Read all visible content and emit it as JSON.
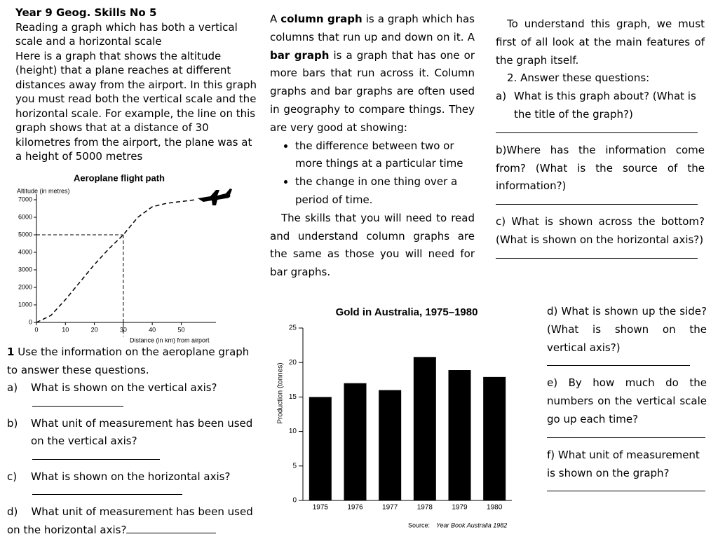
{
  "header": {
    "title": "Year 9 Geog. Skills No 5",
    "subtitle": "Reading a graph which has both a vertical scale and a horizontal scale",
    "intro": "Here is a graph that shows the altitude (height) that a plane reaches at different distances away from the airport. In this graph you must read both the vertical scale and the horizontal scale. For example, the line on this graph shows that at a distance of 30 kilometres from the airport, the plane was at a height of 5000 metres"
  },
  "questions_1": {
    "number": "1",
    "lead": "Use the information on the aeroplane graph to answer these questions.",
    "items": [
      {
        "label": "a)",
        "text": "What is shown on the vertical axis?"
      },
      {
        "label": "b)",
        "text": "What unit of measurement has been used on the vertical axis?"
      },
      {
        "label": "c)",
        "text": "What is shown on the horizontal axis?"
      },
      {
        "label": "d)",
        "text": "What unit of measurement has been used on the horizontal axis?"
      }
    ]
  },
  "column_text": {
    "parts": [
      "A ",
      "column graph",
      " is a graph which has columns that run up and down on it. A ",
      "bar graph",
      " is a graph that has one or more bars that run across it. Column graphs and bar graphs are often used in geography to compare things. They are very good at showing:"
    ],
    "bullets": [
      "the difference between two or more things at a particular time",
      "the change in one thing over a period of time."
    ],
    "closing": "The skills that you will need to read and understand column graphs are the same as those you will need for bar graphs."
  },
  "questions_2": {
    "intro": "To understand this graph, we must first of all look at the main features of the graph itself.",
    "heading": "2. Answer these questions:",
    "items": [
      {
        "label": "a)",
        "text": "What is this graph about? (What is the title of the graph?)"
      },
      {
        "label": "b)",
        "text": "Where has the information come from? (What is the source of the information?)"
      },
      {
        "label": "c)",
        "text": "What is shown across the bottom?(What is shown on the horizontal axis?)"
      },
      {
        "label": "d)",
        "text": "What is shown up the side?(What is shown on the vertical axis?)"
      },
      {
        "label": "e)",
        "text": "By how much do the numbers on the vertical scale go up each time?"
      },
      {
        "label": "f)",
        "text": "What unit of measurement is shown on the graph?"
      }
    ]
  },
  "chart_data": [
    {
      "type": "line",
      "title": "Aeroplane flight path",
      "y_label": "Altitude (in metres)",
      "x_label": "Distance (in km) from airport",
      "x": [
        0,
        5,
        10,
        15,
        20,
        25,
        30,
        35,
        40,
        45,
        50,
        55
      ],
      "values": [
        0,
        400,
        1300,
        2300,
        3300,
        4200,
        5000,
        6000,
        6600,
        6800,
        6900,
        7000
      ],
      "color": "#000000",
      "guide": {
        "x": 30,
        "y": 5000
      },
      "xlim": [
        0,
        62
      ],
      "ylim": [
        0,
        7000
      ],
      "xticks": [
        0,
        10,
        20,
        30,
        40,
        50
      ],
      "yticks": [
        0,
        1000,
        2000,
        3000,
        4000,
        5000,
        6000,
        7000
      ]
    },
    {
      "type": "bar",
      "title": "Gold in Australia, 1975–1980",
      "y_label": "Production (tonnes)",
      "categories": [
        "1975",
        "1976",
        "1977",
        "1978",
        "1979",
        "1980"
      ],
      "values": [
        15,
        17,
        16,
        20.8,
        18.9,
        17.9
      ],
      "color": "#000000",
      "ylim": [
        0,
        25
      ],
      "yticks": [
        0,
        5,
        10,
        15,
        20,
        25
      ],
      "source_label": "Source:",
      "source": "Year Book Australia 1982"
    }
  ]
}
